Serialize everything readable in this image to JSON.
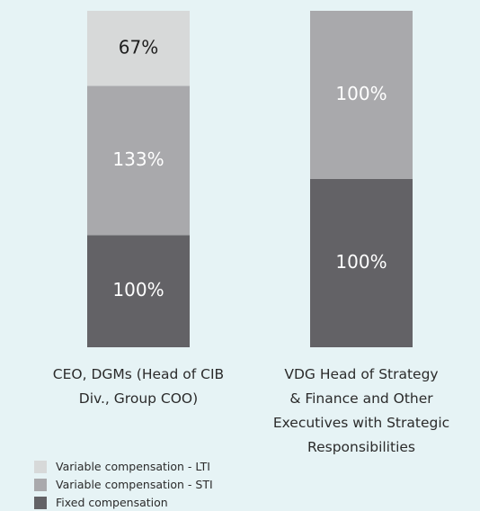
{
  "chart_data": {
    "type": "bar",
    "stacked": "percent",
    "categories": [
      "CEO, DGMs (Head of CIB\nDiv., Group COO)",
      "VDG Head of Strategy\n& Finance and Other\nExecutives with Strategic\nResponsibilities"
    ],
    "series": [
      {
        "name": "Fixed compensation",
        "color": "#636266",
        "label_color": "#ffffff",
        "values": [
          100,
          100
        ],
        "value_labels": [
          "100%",
          "100%"
        ]
      },
      {
        "name": "Variable compensation - STI",
        "color": "#a9a9ac",
        "label_color": "#ffffff",
        "values": [
          133,
          100
        ],
        "value_labels": [
          "133%",
          "100%"
        ]
      },
      {
        "name": "Variable compensation - LTI",
        "color": "#d7d9d9",
        "label_color": "#1e1e1e",
        "values": [
          67,
          null
        ],
        "value_labels": [
          "67%",
          null
        ]
      }
    ]
  }
}
